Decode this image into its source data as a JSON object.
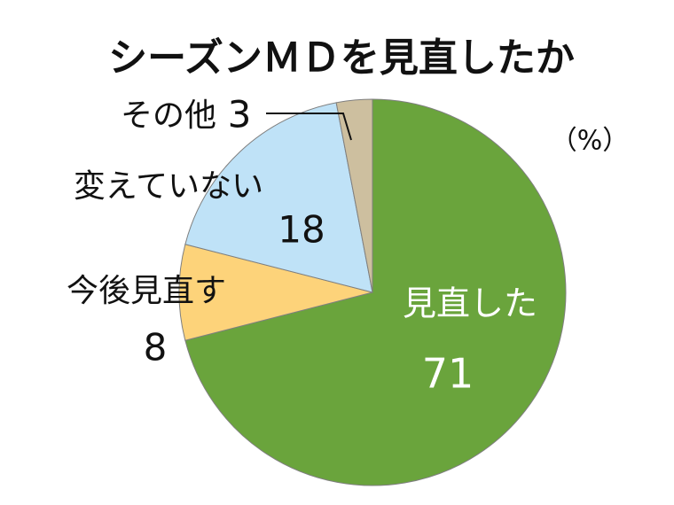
{
  "chart_data": {
    "type": "pie",
    "title": "シーズンＭＤを見直したか",
    "unit": "（%）",
    "categories": [
      "見直した",
      "今後見直す",
      "変えていない",
      "その他"
    ],
    "values": [
      71,
      8,
      18,
      3
    ],
    "colors": [
      "#6aa43c",
      "#fdd37a",
      "#bfe2f7",
      "#cdbf9f"
    ]
  }
}
